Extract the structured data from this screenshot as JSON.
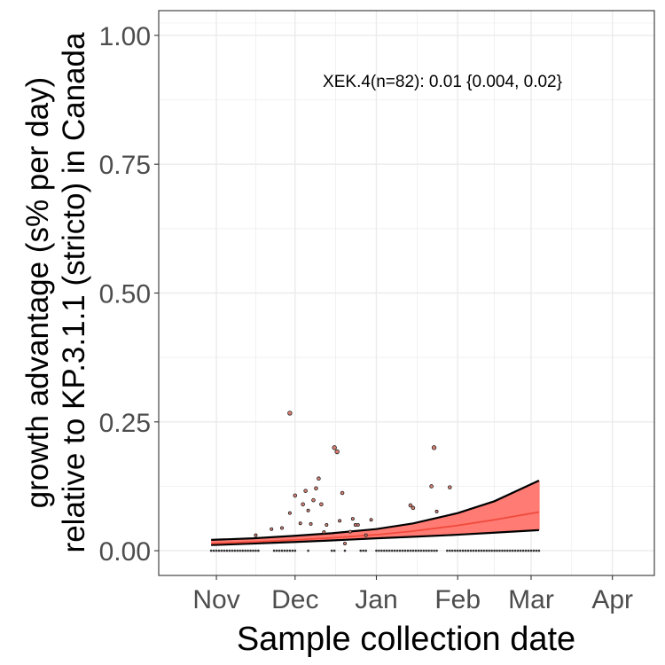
{
  "chart_data": {
    "type": "scatter",
    "title": "",
    "xlabel": "Sample collection date",
    "ylabel_lines": [
      "growth advantage (s% per day)",
      "relative to KP.3.1.1 (stricto) in Canada"
    ],
    "annotation": "XEK.4(n=82): 0.01 {0.004, 0.02}",
    "x_ticks": [
      "Nov",
      "Dec",
      "Jan",
      "Feb",
      "Mar",
      "Apr"
    ],
    "x_tick_dates": [
      "2024-11-01",
      "2024-12-01",
      "2025-01-01",
      "2025-02-01",
      "2025-03-01",
      "2025-04-01"
    ],
    "xlim": [
      "2024-10-10",
      "2025-04-17"
    ],
    "y_ticks": [
      "0.00",
      "0.25",
      "0.50",
      "0.75",
      "1.00"
    ],
    "y_tick_values": [
      0,
      0.25,
      0.5,
      0.75,
      1.0
    ],
    "ylim": [
      -0.048,
      1.048
    ],
    "grid": true,
    "colors": {
      "fit_line": "#f04a3c",
      "ribbon_fill": "#ff7b73",
      "ribbon_edge": "#000000",
      "point_fill": "#d97f72",
      "zero_point": "#333333",
      "grid": "#ebebeb",
      "panel_border": "#333333"
    },
    "fit": {
      "date": [
        "2024-10-30",
        "2024-11-15",
        "2024-12-01",
        "2024-12-15",
        "2025-01-01",
        "2025-01-15",
        "2025-02-01",
        "2025-02-15",
        "2025-03-04"
      ],
      "estimate": [
        0.014,
        0.017,
        0.021,
        0.025,
        0.031,
        0.038,
        0.049,
        0.06,
        0.075
      ],
      "lower": [
        0.011,
        0.014,
        0.017,
        0.02,
        0.024,
        0.027,
        0.031,
        0.035,
        0.04
      ],
      "upper": [
        0.021,
        0.024,
        0.029,
        0.034,
        0.042,
        0.053,
        0.073,
        0.096,
        0.136
      ]
    },
    "points": [
      {
        "x": "2024-11-16",
        "y": 0.03
      },
      {
        "x": "2024-11-22",
        "y": 0.042
      },
      {
        "x": "2024-11-26",
        "y": 0.044
      },
      {
        "x": "2024-11-29",
        "y": 0.073
      },
      {
        "x": "2024-11-29",
        "y": 0.267
      },
      {
        "x": "2024-12-01",
        "y": 0.107
      },
      {
        "x": "2024-12-03",
        "y": 0.053
      },
      {
        "x": "2024-12-04",
        "y": 0.09
      },
      {
        "x": "2024-12-05",
        "y": 0.116
      },
      {
        "x": "2024-12-06",
        "y": 0.078
      },
      {
        "x": "2024-12-07",
        "y": 0.052
      },
      {
        "x": "2024-12-08",
        "y": 0.098
      },
      {
        "x": "2024-12-09",
        "y": 0.121
      },
      {
        "x": "2024-12-10",
        "y": 0.14
      },
      {
        "x": "2024-12-11",
        "y": 0.09
      },
      {
        "x": "2024-12-12",
        "y": 0.036
      },
      {
        "x": "2024-12-13",
        "y": 0.05
      },
      {
        "x": "2024-12-16",
        "y": 0.2
      },
      {
        "x": "2024-12-17",
        "y": 0.192
      },
      {
        "x": "2024-12-18",
        "y": 0.058
      },
      {
        "x": "2024-12-19",
        "y": 0.112
      },
      {
        "x": "2024-12-20",
        "y": 0.014
      },
      {
        "x": "2024-12-22",
        "y": 0.037
      },
      {
        "x": "2024-12-23",
        "y": 0.062
      },
      {
        "x": "2024-12-24",
        "y": 0.05
      },
      {
        "x": "2024-12-25",
        "y": 0.05
      },
      {
        "x": "2024-12-28",
        "y": 0.03
      },
      {
        "x": "2024-12-30",
        "y": 0.06
      },
      {
        "x": "2025-01-14",
        "y": 0.088
      },
      {
        "x": "2025-01-15",
        "y": 0.083
      },
      {
        "x": "2025-01-22",
        "y": 0.125
      },
      {
        "x": "2025-01-23",
        "y": 0.2
      },
      {
        "x": "2025-01-24",
        "y": 0.076
      },
      {
        "x": "2025-01-29",
        "y": 0.123
      }
    ],
    "zero_points": {
      "from": "2024-10-30",
      "to": "2025-03-04",
      "y": 0,
      "gaps": [
        [
          "2024-11-18",
          "2024-11-22"
        ],
        [
          "2024-12-02",
          "2024-12-05"
        ],
        [
          "2024-12-07",
          "2024-12-14"
        ],
        [
          "2024-12-17",
          "2024-12-19"
        ],
        [
          "2024-12-21",
          "2024-12-25"
        ],
        [
          "2024-12-29",
          "2024-12-31"
        ],
        [
          "2025-01-25",
          "2025-01-27"
        ]
      ]
    }
  }
}
